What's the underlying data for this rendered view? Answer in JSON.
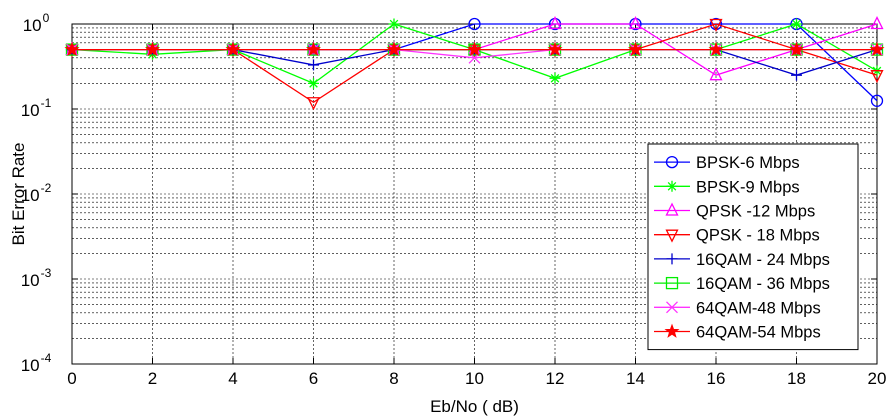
{
  "chart_data": {
    "type": "line",
    "xlabel": "Eb/No ( dB)",
    "ylabel": "Bit Error Rate",
    "xlim": [
      0,
      20
    ],
    "ylim": [
      0.0001,
      1
    ],
    "yscale": "log",
    "grid": true,
    "legend_position": "bottom-right",
    "x_ticks": [
      "0",
      "2",
      "4",
      "6",
      "8",
      "10",
      "12",
      "14",
      "16",
      "18",
      "20"
    ],
    "y_ticks": [
      {
        "base": "10",
        "exp": "-4",
        "value": 0.0001
      },
      {
        "base": "10",
        "exp": "-3",
        "value": 0.001
      },
      {
        "base": "10",
        "exp": "-2",
        "value": 0.01
      },
      {
        "base": "10",
        "exp": "-1",
        "value": 0.1
      },
      {
        "base": "10",
        "exp": "0",
        "value": 1
      }
    ],
    "x": [
      0,
      2,
      4,
      6,
      8,
      10,
      12,
      14,
      16,
      18,
      20
    ],
    "series": [
      {
        "name": "BPSK-6 Mbps",
        "color": "#0000ff",
        "marker": "circle",
        "values": [
          0.5,
          0.5,
          0.5,
          0.5,
          0.5,
          1.0,
          1.0,
          1.0,
          1.0,
          1.0,
          0.125
        ]
      },
      {
        "name": "BPSK-9 Mbps",
        "color": "#00ff00",
        "marker": "asterisk",
        "values": [
          0.5,
          0.44,
          0.5,
          0.2,
          1.0,
          0.5,
          0.23,
          0.5,
          0.5,
          1.0,
          0.28
        ]
      },
      {
        "name": "QPSK -12 Mbps",
        "color": "#ff00ff",
        "marker": "triangle-up",
        "values": [
          0.5,
          0.5,
          0.5,
          0.5,
          0.5,
          0.5,
          1.0,
          1.0,
          0.25,
          0.5,
          1.0
        ]
      },
      {
        "name": "QPSK - 18 Mbps",
        "color": "#ff0000",
        "marker": "triangle-down",
        "values": [
          0.5,
          0.5,
          0.5,
          0.12,
          0.5,
          0.5,
          0.5,
          0.5,
          1.0,
          0.5,
          0.25
        ]
      },
      {
        "name": "16QAM - 24 Mbps",
        "color": "#0000cc",
        "marker": "plus",
        "values": [
          0.5,
          0.5,
          0.5,
          0.33,
          0.5,
          0.5,
          0.5,
          0.5,
          0.5,
          0.25,
          0.5
        ]
      },
      {
        "name": "16QAM - 36 Mbps",
        "color": "#00ee00",
        "marker": "square",
        "values": [
          0.5,
          0.5,
          0.5,
          0.5,
          0.5,
          0.5,
          0.5,
          0.5,
          0.5,
          0.5,
          0.5
        ]
      },
      {
        "name": "64QAM-48 Mbps",
        "color": "#ff33ff",
        "marker": "cross",
        "values": [
          0.5,
          0.5,
          0.5,
          0.5,
          0.5,
          0.4,
          0.5,
          0.5,
          0.5,
          0.5,
          0.5
        ]
      },
      {
        "name": "64QAM-54 Mbps",
        "color": "#ff0000",
        "marker": "star",
        "values": [
          0.5,
          0.5,
          0.5,
          0.5,
          0.5,
          0.5,
          0.5,
          0.5,
          0.5,
          0.5,
          0.5
        ]
      }
    ]
  }
}
